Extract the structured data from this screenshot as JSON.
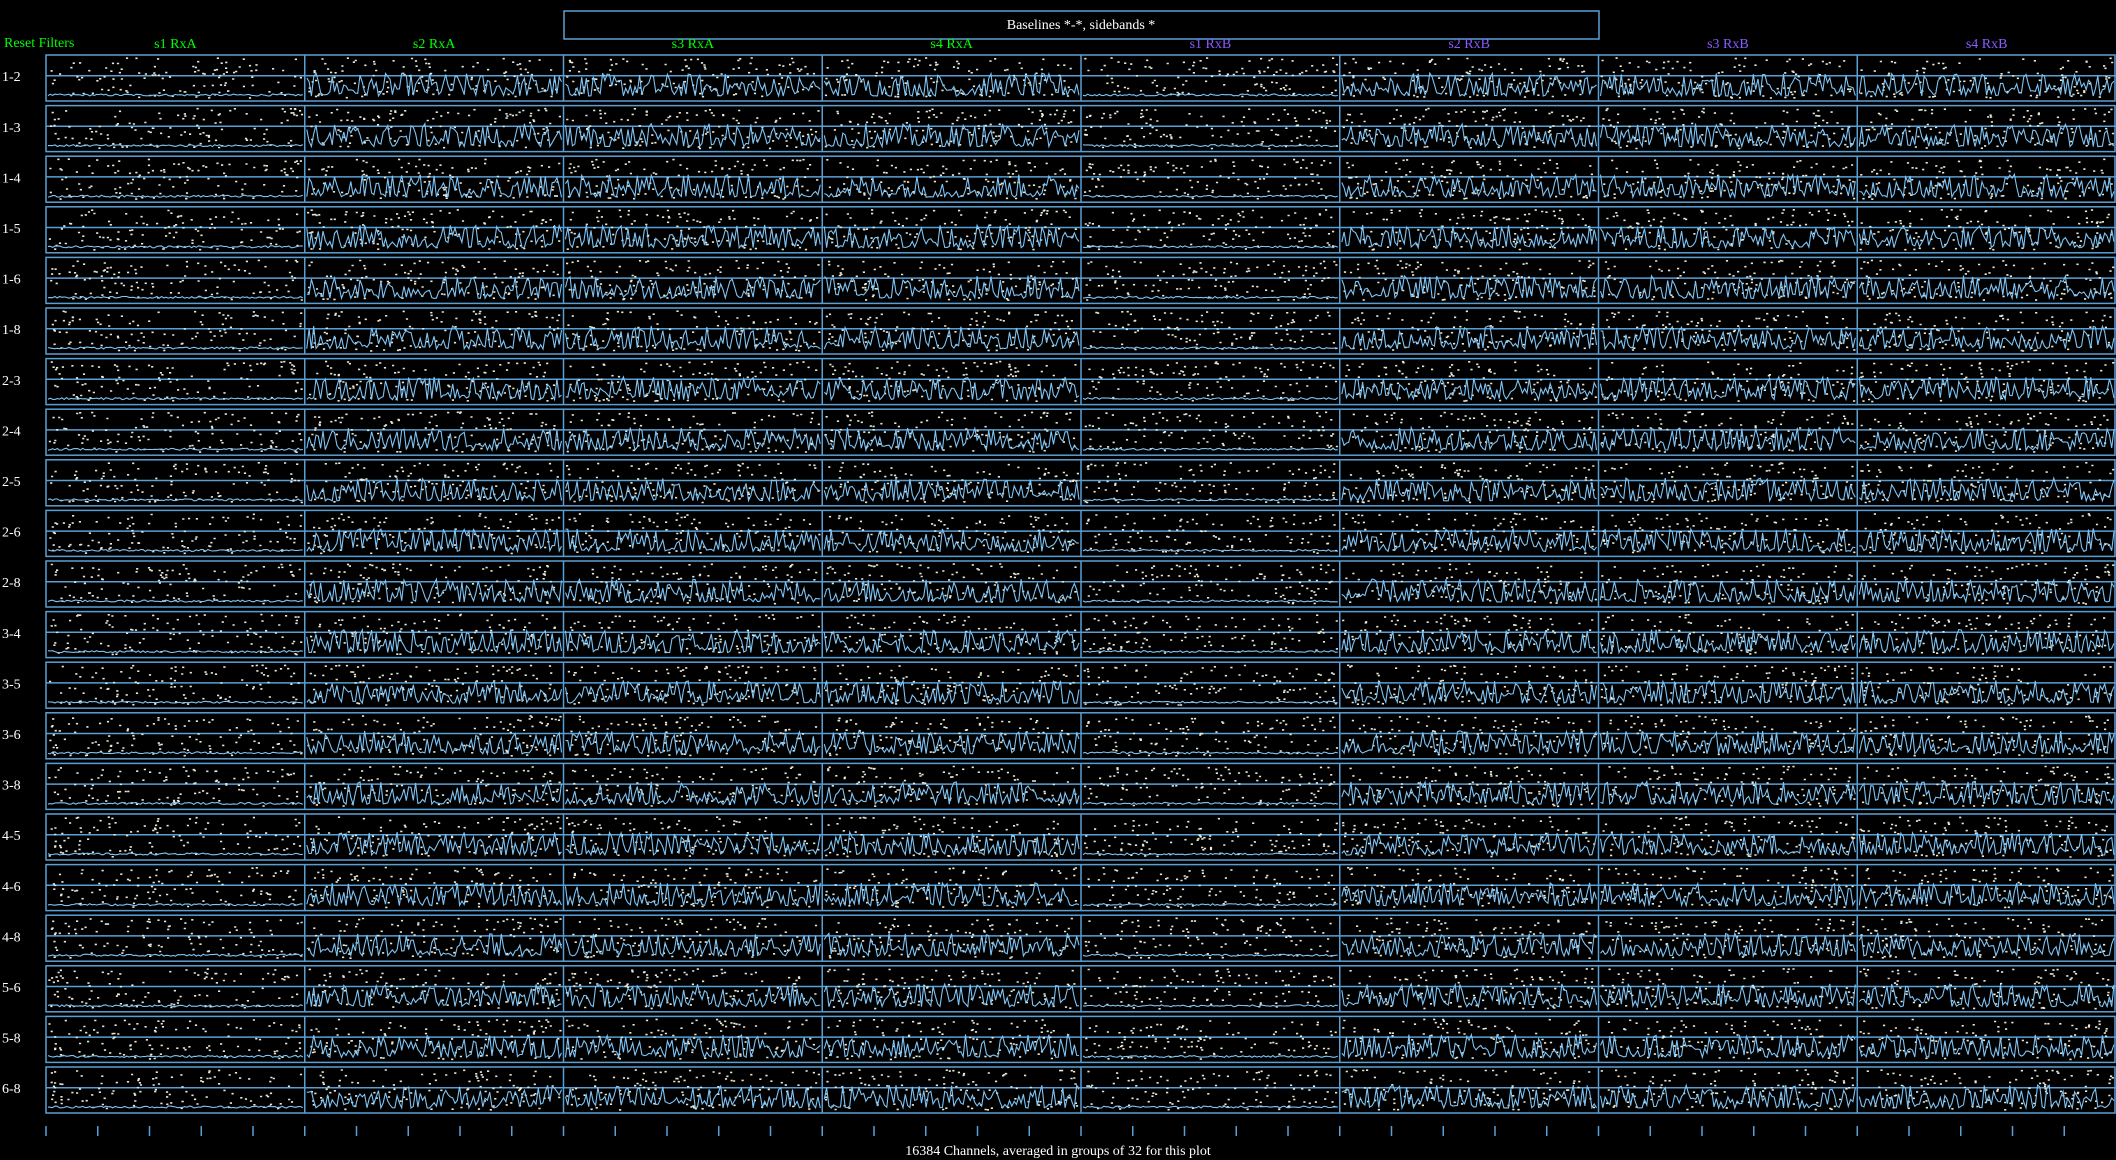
{
  "header": {
    "reset": "Reset Filters",
    "title": "Baselines *-*, sidebands *",
    "columns": [
      "s1 RxA",
      "s2 RxA",
      "s3 RxA",
      "s4 RxA",
      "s1 RxB",
      "s2 RxB",
      "s3 RxB",
      "s4 RxB"
    ]
  },
  "baselines": [
    "1-2",
    "1-3",
    "1-4",
    "1-5",
    "1-6",
    "1-8",
    "2-3",
    "2-4",
    "2-5",
    "2-6",
    "2-8",
    "3-4",
    "3-5",
    "3-6",
    "3-8",
    "4-5",
    "4-6",
    "4-8",
    "5-6",
    "5-8",
    "6-8"
  ],
  "footer": "16384 Channels, averaged in groups of 32 for this plot"
}
